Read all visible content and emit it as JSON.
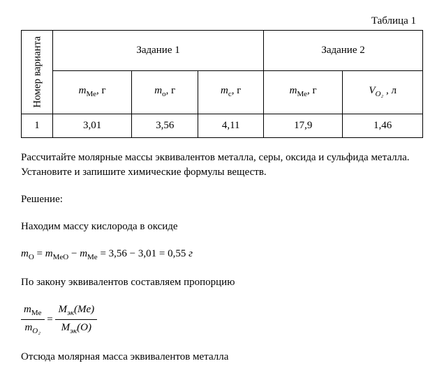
{
  "table": {
    "caption": "Таблица 1",
    "row_header": "Номер варианта",
    "group1": "Задание 1",
    "group2": "Задание 2",
    "cols": {
      "c1_var": "m",
      "c1_sub": "Ме",
      "c1_unit": ", г",
      "c2_var": "m",
      "c2_sub": "о",
      "c2_unit": ", г",
      "c3_var": "m",
      "c3_sub": "с",
      "c3_unit": ", г",
      "c4_var": "m",
      "c4_sub": "Ме",
      "c4_unit": ", г",
      "c5_var": "V",
      "c5_sub": "O₂",
      "c5_unit": " , л"
    },
    "row": {
      "n": "1",
      "v1": "3,01",
      "v2": "3,56",
      "v3": "4,11",
      "v4": "17,9",
      "v5": "1,46"
    }
  },
  "text": {
    "p1": "Рассчитайте молярные массы эквивалентов металла, серы, оксида и сульфида металла. Установите и запишите химические формулы веществ.",
    "p2": "Решение:",
    "p3": "Находим массу кислорода в оксиде",
    "p4": "По закону эквивалентов составляем пропорцию",
    "p5": "Отсюда молярная масса эквивалентов металла"
  },
  "formula1": {
    "lhs_var": "m",
    "lhs_sub": "O",
    "eq1": " = ",
    "t1_var": "m",
    "t1_sub": "MeO",
    "minus": " − ",
    "t2_var": "m",
    "t2_sub": "Me",
    "eq2": " = 3,56 − 3,01 = 0,55 ",
    "unit": "г"
  },
  "formula2": {
    "num1_var": "m",
    "num1_sub": "Me",
    "den1_var": "m",
    "den1_sub": "O₂",
    "eq": " = ",
    "num2_var": "M",
    "num2_sub": "эк",
    "num2_arg": "(Me)",
    "den2_var": "M",
    "den2_sub": "эк",
    "den2_arg": "(O)"
  }
}
